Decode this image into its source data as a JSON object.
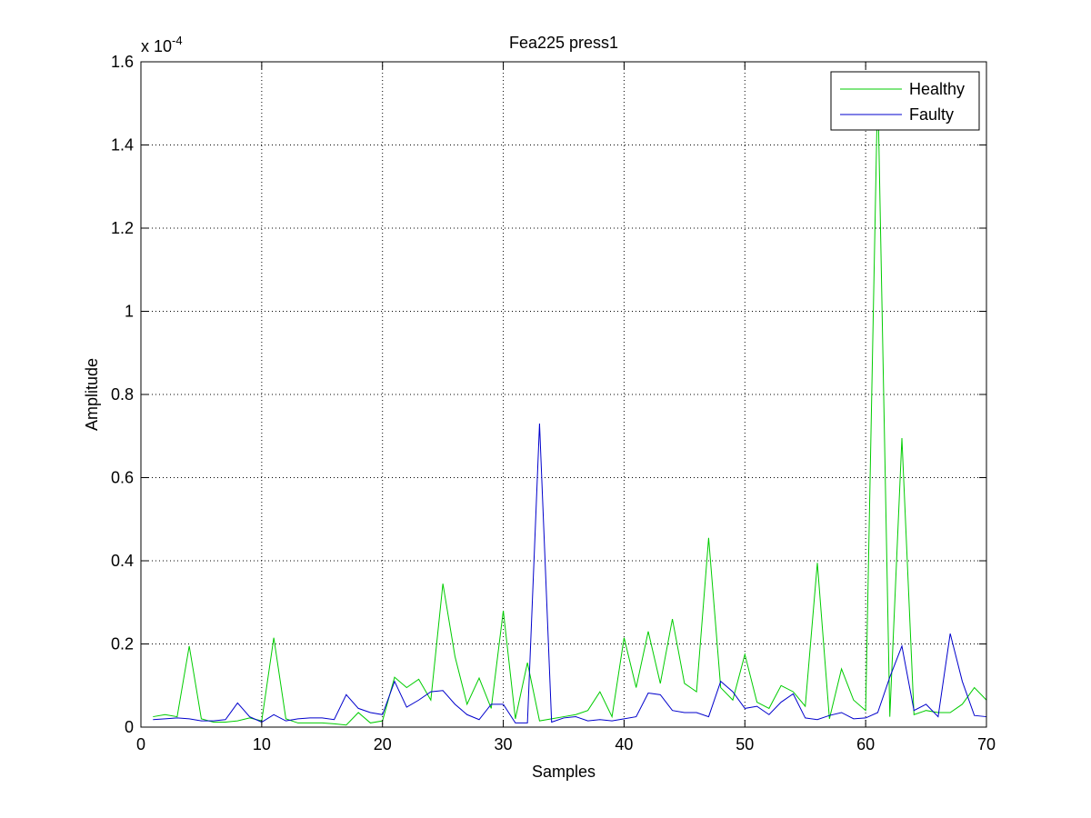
{
  "chart_data": {
    "type": "line",
    "title": "Fea225  press1",
    "xlabel": "Samples",
    "ylabel": "Amplitude",
    "exponent_label": "x 10",
    "exponent_power": "-4",
    "xlim": [
      0,
      70
    ],
    "ylim": [
      0,
      1.6
    ],
    "xticks": [
      0,
      10,
      20,
      30,
      40,
      50,
      60,
      70
    ],
    "yticks": [
      0,
      0.2,
      0.4,
      0.6,
      0.8,
      1,
      1.2,
      1.4,
      1.6
    ],
    "xtick_labels": [
      "0",
      "10",
      "20",
      "30",
      "40",
      "50",
      "60",
      "70"
    ],
    "ytick_labels": [
      "0",
      "0.2",
      "0.4",
      "0.6",
      "0.8",
      "1",
      "1.2",
      "1.4",
      "1.6"
    ],
    "grid": true,
    "legend_position": "top-right",
    "x": [
      1,
      2,
      3,
      4,
      5,
      6,
      7,
      8,
      9,
      10,
      11,
      12,
      13,
      14,
      15,
      16,
      17,
      18,
      19,
      20,
      21,
      22,
      23,
      24,
      25,
      26,
      27,
      28,
      29,
      30,
      31,
      32,
      33,
      34,
      35,
      36,
      37,
      38,
      39,
      40,
      41,
      42,
      43,
      44,
      45,
      46,
      47,
      48,
      49,
      50,
      51,
      52,
      53,
      54,
      55,
      56,
      57,
      58,
      59,
      60,
      61,
      62,
      63,
      64,
      65,
      66,
      67,
      68,
      69,
      70
    ],
    "series": [
      {
        "name": "Healthy",
        "color": "#00cc00",
        "values": [
          0.025,
          0.03,
          0.025,
          0.195,
          0.02,
          0.012,
          0.012,
          0.015,
          0.022,
          0.015,
          0.215,
          0.02,
          0.01,
          0.01,
          0.01,
          0.008,
          0.005,
          0.035,
          0.01,
          0.015,
          0.12,
          0.095,
          0.115,
          0.065,
          0.345,
          0.17,
          0.055,
          0.118,
          0.045,
          0.28,
          0.02,
          0.155,
          0.015,
          0.02,
          0.025,
          0.03,
          0.04,
          0.085,
          0.025,
          0.215,
          0.095,
          0.23,
          0.105,
          0.26,
          0.105,
          0.085,
          0.455,
          0.095,
          0.065,
          0.175,
          0.06,
          0.045,
          0.1,
          0.085,
          0.05,
          0.395,
          0.02,
          0.14,
          0.065,
          0.04,
          1.55,
          0.025,
          0.695,
          0.03,
          0.04,
          0.035,
          0.035,
          0.055,
          0.095,
          0.065
        ]
      },
      {
        "name": "Faulty",
        "color": "#0000cc",
        "values": [
          0.018,
          0.02,
          0.022,
          0.02,
          0.015,
          0.015,
          0.018,
          0.058,
          0.025,
          0.012,
          0.03,
          0.015,
          0.02,
          0.022,
          0.022,
          0.018,
          0.078,
          0.045,
          0.035,
          0.03,
          0.11,
          0.048,
          0.065,
          0.085,
          0.088,
          0.055,
          0.03,
          0.018,
          0.055,
          0.055,
          0.01,
          0.01,
          0.73,
          0.012,
          0.022,
          0.025,
          0.015,
          0.018,
          0.015,
          0.02,
          0.025,
          0.082,
          0.078,
          0.04,
          0.035,
          0.035,
          0.025,
          0.11,
          0.085,
          0.045,
          0.05,
          0.03,
          0.06,
          0.08,
          0.022,
          0.018,
          0.028,
          0.035,
          0.02,
          0.022,
          0.035,
          0.12,
          0.195,
          0.04,
          0.055,
          0.025,
          0.225,
          0.11,
          0.028,
          0.025
        ]
      }
    ]
  }
}
